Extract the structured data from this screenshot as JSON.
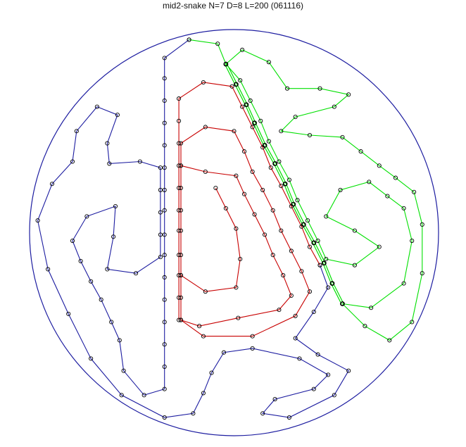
{
  "chart_data": {
    "type": "line",
    "title": "mid2-snake N=7 D=8 L=200 (061116)",
    "boundary": {
      "shape": "circle",
      "center": [
        100,
        100
      ],
      "radius": 100,
      "color": "#1c1ca0"
    },
    "marker": {
      "shape": "open-circle",
      "color": "#000000"
    },
    "series": [
      {
        "color": "#1c1ca0",
        "points": [
          [
            78,
            195
          ],
          [
            66,
            186
          ],
          [
            66,
            176
          ],
          [
            66,
            165
          ],
          [
            66,
            154
          ],
          [
            66,
            143
          ],
          [
            66,
            132
          ],
          [
            66,
            121
          ],
          [
            66,
            111
          ],
          [
            66,
            99
          ],
          [
            66,
            89
          ],
          [
            66,
            78
          ],
          [
            66,
            67
          ],
          [
            66,
            56
          ],
          [
            66,
            45
          ],
          [
            66,
            34
          ],
          [
            66,
            23
          ],
          [
            56,
            20
          ],
          [
            46,
            32
          ],
          [
            44,
            47
          ],
          [
            40,
            56
          ],
          [
            35,
            67
          ],
          [
            30,
            76
          ],
          [
            25,
            86
          ],
          [
            21,
            96
          ],
          [
            28,
            108
          ],
          [
            42,
            113
          ],
          [
            41,
            98
          ],
          [
            38,
            82
          ],
          [
            52,
            80
          ],
          [
            64,
            88
          ],
          [
            64,
            99
          ],
          [
            64,
            110
          ],
          [
            64,
            121
          ],
          [
            64,
            132
          ],
          [
            54,
            135
          ],
          [
            39,
            134
          ],
          [
            38,
            144
          ],
          [
            43,
            158
          ],
          [
            33,
            162
          ],
          [
            23,
            150
          ],
          [
            21,
            135
          ],
          [
            11,
            124
          ],
          [
            4,
            106
          ],
          [
            9,
            82
          ],
          [
            19,
            60
          ],
          [
            30,
            38
          ],
          [
            45,
            20
          ],
          [
            66,
            9
          ],
          [
            80,
            11
          ],
          [
            85,
            21
          ],
          [
            89,
            31
          ],
          [
            95,
            41
          ],
          [
            109,
            43
          ],
          [
            132,
            38
          ],
          [
            146,
            30
          ],
          [
            139,
            23
          ],
          [
            120,
            18
          ],
          [
            114,
            11
          ],
          [
            127,
            9
          ],
          [
            149,
            20
          ],
          [
            156,
            32
          ],
          [
            141,
            40
          ],
          [
            130,
            48
          ],
          [
            139,
            61
          ],
          [
            146,
            73
          ],
          [
            142,
            84
          ]
        ]
      },
      {
        "color": "#c80000",
        "points": [
          [
            142,
            84
          ],
          [
            137,
            93
          ],
          [
            133,
            103
          ],
          [
            128,
            113
          ],
          [
            123,
            123
          ],
          [
            118,
            132
          ],
          [
            114,
            142
          ],
          [
            109,
            152
          ],
          [
            104,
            162
          ],
          [
            99,
            172
          ],
          [
            85,
            174
          ],
          [
            73,
            166
          ],
          [
            73,
            155
          ],
          [
            73,
            144
          ],
          [
            73,
            133
          ],
          [
            73,
            122
          ],
          [
            73,
            111
          ],
          [
            73,
            101
          ],
          [
            73,
            89
          ],
          [
            73,
            79
          ],
          [
            73,
            68
          ],
          [
            73,
            57
          ]
        ]
      },
      {
        "color": "#c80000",
        "points": [
          [
            74,
            57
          ],
          [
            74,
            68
          ],
          [
            74,
            79
          ],
          [
            74,
            89
          ],
          [
            74,
            101
          ],
          [
            74,
            111
          ],
          [
            74,
            122
          ],
          [
            74,
            133
          ],
          [
            74,
            144
          ],
          [
            86,
            152
          ],
          [
            100,
            150
          ],
          [
            105,
            140
          ],
          [
            109,
            130
          ],
          [
            114,
            121
          ],
          [
            119,
            111
          ],
          [
            123,
            101
          ],
          [
            128,
            91
          ],
          [
            133,
            81
          ],
          [
            137,
            71
          ],
          [
            130,
            59
          ],
          [
            109,
            49
          ],
          [
            85,
            49
          ],
          [
            74,
            57
          ]
        ]
      },
      {
        "color": "#c80000",
        "points": [
          [
            74,
            133
          ],
          [
            86,
            130
          ],
          [
            101,
            128
          ],
          [
            105,
            119
          ],
          [
            110,
            109
          ],
          [
            115,
            99
          ],
          [
            119,
            89
          ],
          [
            124,
            79
          ],
          [
            128,
            69
          ],
          [
            122,
            62
          ],
          [
            102,
            58
          ],
          [
            83,
            54
          ],
          [
            74,
            57
          ]
        ]
      },
      {
        "color": "#c80000",
        "points": [
          [
            91,
            122
          ],
          [
            96,
            112
          ],
          [
            101,
            102
          ],
          [
            103,
            87
          ],
          [
            101,
            73
          ],
          [
            86,
            71
          ],
          [
            74,
            79
          ]
        ]
      },
      {
        "color": "#00e000",
        "width": 1,
        "points": [
          [
            78,
            195
          ],
          [
            92,
            193
          ],
          [
            96,
            183
          ],
          [
            104,
            190
          ],
          [
            117,
            184
          ],
          [
            126,
            171
          ],
          [
            142,
            171
          ],
          [
            156,
            168
          ],
          [
            149,
            162
          ],
          [
            130,
            157
          ],
          [
            123,
            150
          ],
          [
            137,
            148
          ],
          [
            153,
            147
          ],
          [
            162,
            140
          ],
          [
            171,
            133
          ],
          [
            179,
            127
          ],
          [
            188,
            120
          ],
          [
            192,
            104
          ],
          [
            192,
            80
          ],
          [
            187,
            56
          ],
          [
            176,
            47
          ],
          [
            164,
            54
          ],
          [
            153,
            65
          ]
        ]
      },
      {
        "color": "#00e000",
        "width": 3,
        "points": [
          [
            96,
            183
          ],
          [
            101,
            173
          ],
          [
            106,
            163
          ],
          [
            110,
            154
          ],
          [
            115,
            143
          ],
          [
            120,
            134
          ],
          [
            125,
            124
          ],
          [
            129,
            114
          ],
          [
            134,
            104
          ],
          [
            139,
            95
          ],
          [
            144,
            85
          ],
          [
            148,
            75
          ],
          [
            153,
            65
          ]
        ]
      },
      {
        "color": "#00e000",
        "width": 1,
        "points": [
          [
            153,
            65
          ],
          [
            167,
            63
          ],
          [
            183,
            75
          ],
          [
            187,
            96
          ],
          [
            183,
            112
          ],
          [
            175,
            118
          ],
          [
            166,
            125
          ],
          [
            152,
            121
          ],
          [
            145,
            108
          ],
          [
            159,
            101
          ],
          [
            171,
            93
          ],
          [
            159,
            84
          ],
          [
            145,
            87
          ],
          [
            141,
            96
          ],
          [
            136,
            106
          ],
          [
            131,
            116
          ],
          [
            127,
            126
          ],
          [
            122,
            135
          ],
          [
            117,
            145
          ],
          [
            113,
            155
          ],
          [
            108,
            165
          ],
          [
            103,
            175
          ],
          [
            96,
            183
          ]
        ]
      }
    ]
  }
}
